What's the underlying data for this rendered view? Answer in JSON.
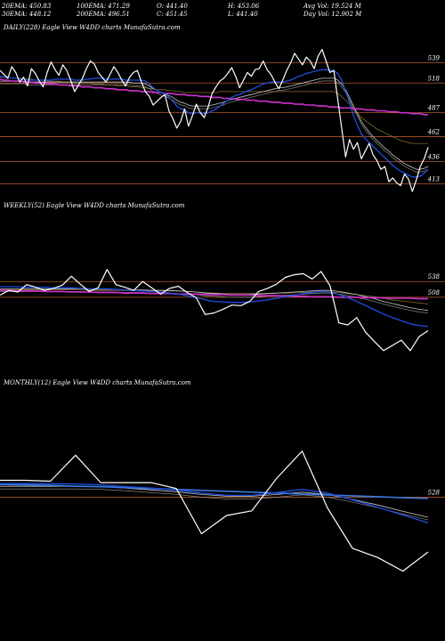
{
  "header": {
    "row1": [
      {
        "id": "ema20",
        "text": "20EMA: 450.83"
      },
      {
        "id": "ema100",
        "text": "100EMA: 471.29"
      },
      {
        "id": "open",
        "text": "O: 441.40"
      },
      {
        "id": "high",
        "text": "H: 453.06"
      },
      {
        "id": "avgvol",
        "text": "Avg Vol: 19.524  M"
      }
    ],
    "row2": [
      {
        "id": "ema30",
        "text": "30EMA: 448.12"
      },
      {
        "id": "ema200",
        "text": "200EMA: 496.51"
      },
      {
        "id": "close",
        "text": "C: 451.45"
      },
      {
        "id": "low",
        "text": "L: 441.40"
      },
      {
        "id": "dayvol",
        "text": "Day Vol: 12.902  M"
      }
    ]
  },
  "colors": {
    "background": "#000000",
    "price": "#ffffff",
    "ema_fast": "#1f4fe0",
    "ema_slow": "#c8c8c8",
    "ema_long": "#8a6a2a",
    "trend": "#d030d0",
    "level": "#b05a2a",
    "level_text": "#ffffff"
  },
  "chart_data": [
    {
      "type": "line",
      "panel": "daily",
      "title": "DAILY(228) Eagle  View  W4DD charts MunafaSutra.com",
      "ylim": [
        405,
        560
      ],
      "levels": [
        {
          "value": "539",
          "y": 539
        },
        {
          "value": "518",
          "y": 518
        },
        {
          "value": "487",
          "y": 487
        },
        {
          "value": "462",
          "y": 462
        },
        {
          "value": "436",
          "y": 436
        },
        {
          "value": "413",
          "y": 413
        }
      ],
      "series": [
        {
          "role": "price",
          "values": [
            531,
            527,
            523,
            535,
            529,
            519,
            524,
            515,
            533,
            528,
            520,
            514,
            529,
            540,
            532,
            526,
            537,
            531,
            521,
            509,
            516,
            523,
            533,
            541,
            538,
            529,
            524,
            519,
            527,
            535,
            529,
            521,
            515,
            524,
            529,
            531,
            519,
            509,
            504,
            495,
            499,
            503,
            506,
            489,
            481,
            471,
            478,
            491,
            473,
            484,
            496,
            487,
            482,
            493,
            507,
            514,
            520,
            523,
            528,
            534,
            525,
            513,
            521,
            529,
            525,
            532,
            533,
            541,
            532,
            527,
            519,
            512,
            521,
            531,
            539,
            549,
            543,
            537,
            545,
            541,
            533,
            546,
            553,
            541,
            529,
            531,
            501,
            471,
            441,
            459,
            449,
            456,
            439,
            447,
            455,
            443,
            437,
            428,
            431,
            415,
            419,
            414,
            411,
            423,
            418,
            405,
            417,
            431,
            439,
            451
          ]
        },
        {
          "role": "ema_fast",
          "values": [
            525,
            524,
            524,
            523,
            523,
            522,
            522,
            521,
            521,
            521,
            521,
            521,
            521,
            521,
            522,
            522,
            522,
            522,
            522,
            521,
            521,
            521,
            522,
            522,
            523,
            523,
            523,
            522,
            522,
            522,
            522,
            522,
            521,
            521,
            521,
            521,
            521,
            520,
            517,
            513,
            510,
            508,
            507,
            503,
            499,
            494,
            491,
            490,
            487,
            486,
            487,
            487,
            486,
            487,
            489,
            491,
            494,
            497,
            500,
            503,
            505,
            506,
            508,
            510,
            511,
            513,
            515,
            517,
            518,
            519,
            519,
            519,
            519,
            520,
            521,
            523,
            525,
            526,
            528,
            529,
            530,
            531,
            532,
            532,
            531,
            531,
            528,
            521,
            509,
            498,
            484,
            474,
            465,
            460,
            456,
            452,
            448,
            444,
            440,
            436,
            432,
            429,
            426,
            424,
            422,
            420,
            420,
            421,
            424,
            428
          ]
        },
        {
          "role": "ema_slow",
          "values": [
            520,
            520,
            520,
            520,
            520,
            520,
            520,
            519,
            519,
            519,
            519,
            519,
            519,
            519,
            519,
            519,
            519,
            519,
            519,
            519,
            519,
            519,
            519,
            519,
            519,
            519,
            519,
            519,
            519,
            519,
            519,
            519,
            519,
            519,
            518,
            518,
            518,
            517,
            515,
            512,
            510,
            508,
            507,
            505,
            503,
            500,
            498,
            497,
            495,
            494,
            494,
            494,
            494,
            494,
            495,
            496,
            497,
            498,
            500,
            501,
            502,
            503,
            504,
            505,
            506,
            507,
            508,
            509,
            510,
            511,
            512,
            513,
            513,
            514,
            515,
            516,
            517,
            518,
            519,
            520,
            521,
            522,
            523,
            523,
            523,
            523,
            521,
            517,
            511,
            503,
            494,
            486,
            478,
            472,
            467,
            462,
            458,
            454,
            450,
            447,
            443,
            440,
            437,
            434,
            432,
            430,
            428,
            428,
            429,
            431
          ]
        },
        {
          "role": "ema_long",
          "values": [
            524,
            524,
            524,
            523,
            523,
            523,
            522,
            522,
            522,
            521,
            521,
            521,
            520,
            520,
            520,
            520,
            519,
            519,
            519,
            518,
            518,
            518,
            518,
            518,
            517,
            517,
            517,
            516,
            516,
            516,
            515,
            515,
            515,
            514,
            514,
            514,
            513,
            513,
            512,
            512,
            511,
            511,
            511,
            510,
            510,
            509,
            509,
            508,
            508,
            508,
            508,
            508,
            508,
            508,
            508,
            508,
            509,
            509,
            509,
            509,
            509,
            509,
            509,
            509,
            509,
            509,
            509,
            509,
            509,
            509,
            509,
            509,
            509,
            509,
            509,
            509,
            509,
            509,
            509,
            509,
            509,
            509,
            509,
            509,
            509,
            509,
            507,
            504,
            500,
            496,
            491,
            487,
            482,
            479,
            476,
            473,
            470,
            468,
            466,
            464,
            462,
            460,
            458,
            457,
            456,
            455,
            455,
            455,
            455,
            455
          ]
        },
        {
          "role": "trend",
          "values": [
            522,
            521,
            521,
            520,
            520,
            520,
            519,
            519,
            519,
            518,
            518,
            518,
            517,
            517,
            517,
            516,
            516,
            516,
            515,
            515,
            515,
            514,
            514,
            514,
            513,
            513,
            513,
            512,
            512,
            512,
            511,
            511,
            511,
            510,
            510,
            510,
            509,
            509,
            509,
            508,
            508,
            508,
            507,
            507,
            507,
            506,
            506,
            506,
            505,
            505,
            505,
            504,
            504,
            504,
            503,
            503,
            503,
            502,
            502,
            502,
            501,
            501,
            501,
            500,
            500,
            500,
            499,
            499,
            499,
            498,
            498,
            498,
            497,
            497,
            497,
            496,
            496,
            496,
            495,
            495,
            495,
            494,
            494,
            494,
            493,
            493,
            493,
            492,
            492,
            492,
            491,
            491,
            491,
            490,
            490,
            490,
            489,
            489,
            489,
            488,
            488,
            488,
            487,
            487,
            487,
            486,
            486,
            486,
            485,
            485
          ]
        }
      ]
    },
    {
      "type": "line",
      "panel": "weekly",
      "title": "WEEKLY(52) Eagle  View  W4DD charts MunafaSutra.com",
      "ylim": [
        370,
        620
      ],
      "levels": [
        {
          "value": "538",
          "y": 538
        },
        {
          "value": "508",
          "y": 508
        }
      ],
      "series": [
        {
          "role": "price",
          "values": [
            512,
            521,
            518,
            532,
            527,
            521,
            525,
            531,
            548,
            533,
            519,
            526,
            561,
            532,
            527,
            521,
            538,
            526,
            514,
            525,
            529,
            517,
            507,
            475,
            478,
            485,
            493,
            492,
            500,
            519,
            525,
            533,
            546,
            551,
            553,
            543,
            557,
            530,
            459,
            455,
            469,
            441,
            423,
            406,
            416,
            426,
            406,
            433,
            444
          ]
        },
        {
          "role": "ema_fast",
          "values": [
            528,
            528,
            528,
            527,
            527,
            527,
            526,
            526,
            526,
            525,
            524,
            524,
            524,
            523,
            522,
            521,
            520,
            519,
            518,
            516,
            514,
            511,
            507,
            503,
            500,
            499,
            498,
            498,
            499,
            501,
            503,
            506,
            509,
            512,
            515,
            517,
            519,
            518,
            513,
            507,
            500,
            492,
            484,
            476,
            469,
            463,
            457,
            454,
            452
          ]
        },
        {
          "role": "ema_slow",
          "values": [
            524,
            524,
            524,
            524,
            524,
            524,
            524,
            524,
            524,
            524,
            523,
            523,
            523,
            523,
            522,
            522,
            522,
            521,
            521,
            521,
            520,
            519,
            518,
            516,
            515,
            514,
            513,
            513,
            513,
            514,
            515,
            516,
            517,
            518,
            519,
            520,
            521,
            521,
            519,
            516,
            513,
            509,
            505,
            500,
            496,
            492,
            488,
            485,
            483
          ]
        },
        {
          "role": "ema_long",
          "values": [
            522,
            522,
            522,
            522,
            522,
            522,
            522,
            522,
            522,
            522,
            521,
            521,
            521,
            521,
            521,
            521,
            521,
            521,
            521,
            520,
            520,
            519,
            518,
            517,
            516,
            515,
            515,
            515,
            515,
            515,
            515,
            516,
            516,
            517,
            517,
            518,
            518,
            518,
            517,
            515,
            513,
            511,
            509,
            506,
            503,
            501,
            499,
            497,
            495
          ]
        },
        {
          "role": "trend",
          "values": [
            521,
            521,
            520,
            520,
            520,
            519,
            519,
            519,
            518,
            518,
            518,
            517,
            517,
            517,
            516,
            516,
            516,
            515,
            515,
            515,
            514,
            514,
            514,
            513,
            513,
            513,
            512,
            512,
            512,
            511,
            511,
            511,
            510,
            510,
            510,
            509,
            509,
            509,
            508,
            508,
            508,
            507,
            507,
            507,
            506,
            506,
            506,
            505,
            505
          ]
        }
      ]
    },
    {
      "type": "line",
      "panel": "monthly",
      "title": "MONTHLY(12) Eagle  View  W4DD charts MunafaSutra.com",
      "ylim": [
        330,
        720
      ],
      "levels": [
        {
          "value": "528",
          "y": 528
        }
      ],
      "series": [
        {
          "role": "price",
          "values": [
            565,
            565,
            563,
            620,
            560,
            560,
            560,
            547,
            448,
            488,
            498,
            570,
            629,
            505,
            416,
            396,
            366,
            408
          ]
        },
        {
          "role": "ema_fast",
          "values": [
            558,
            558,
            558,
            557,
            555,
            551,
            548,
            544,
            537,
            532,
            532,
            538,
            545,
            537,
            522,
            506,
            489,
            472
          ]
        },
        {
          "role": "ema_slow",
          "values": [
            552,
            552,
            552,
            552,
            551,
            548,
            544,
            540,
            534,
            530,
            530,
            534,
            539,
            534,
            523,
            511,
            497,
            484
          ]
        },
        {
          "role": "trend",
          "values": [
            556,
            555,
            554,
            552,
            551,
            549,
            547,
            545,
            543,
            541,
            539,
            537,
            535,
            533,
            531,
            529,
            527,
            525
          ]
        }
      ]
    }
  ]
}
